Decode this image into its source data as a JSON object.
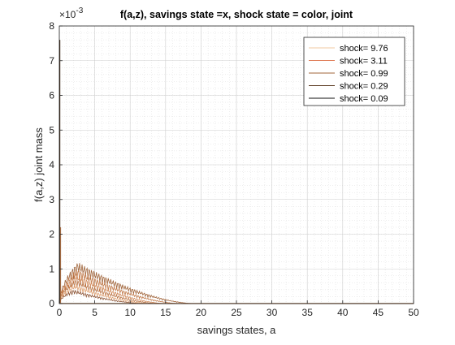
{
  "chart_data": {
    "type": "line",
    "title": "f(a,z), savings state =x, shock state = color, joint",
    "xlabel": "savings states, a",
    "ylabel": "f(a,z) joint mass",
    "y_exponent_label": "×10",
    "y_exponent_power": "-3",
    "xlim": [
      0,
      50
    ],
    "ylim": [
      0,
      8
    ],
    "xticks": [
      0,
      5,
      10,
      15,
      20,
      25,
      30,
      35,
      40,
      45,
      50
    ],
    "yticks": [
      0,
      1,
      2,
      3,
      4,
      5,
      6,
      7,
      8
    ],
    "grid": true,
    "minor_grid": true,
    "legend_position": "top-right",
    "legend": [
      {
        "label": "shock=  9.76",
        "color": "#f2c9a0"
      },
      {
        "label": "shock=  3.11",
        "color": "#e07e5a"
      },
      {
        "label": "shock=  0.99",
        "color": "#a0643a"
      },
      {
        "label": "shock=  0.29",
        "color": "#5a3a22"
      },
      {
        "label": "shock=  0.09",
        "color": "#111111"
      }
    ],
    "series_colors": [
      "#a0643a",
      "#c07848",
      "#d08858",
      "#b87040",
      "#e0a070",
      "#8a5030"
    ],
    "envelopes": [
      {
        "peak_x": 2.6,
        "peak_y": 1.2,
        "tail_x": 19
      },
      {
        "peak_x": 2.5,
        "peak_y": 1.0,
        "tail_x": 17
      },
      {
        "peak_x": 2.4,
        "peak_y": 0.85,
        "tail_x": 15
      },
      {
        "peak_x": 2.3,
        "peak_y": 0.7,
        "tail_x": 14
      },
      {
        "peak_x": 2.2,
        "peak_y": 0.55,
        "tail_x": 13
      },
      {
        "peak_x": 2.0,
        "peak_y": 0.4,
        "tail_x": 12
      }
    ],
    "spike_at_zero": 7.6,
    "second_spike_at_zero": 2.2
  }
}
